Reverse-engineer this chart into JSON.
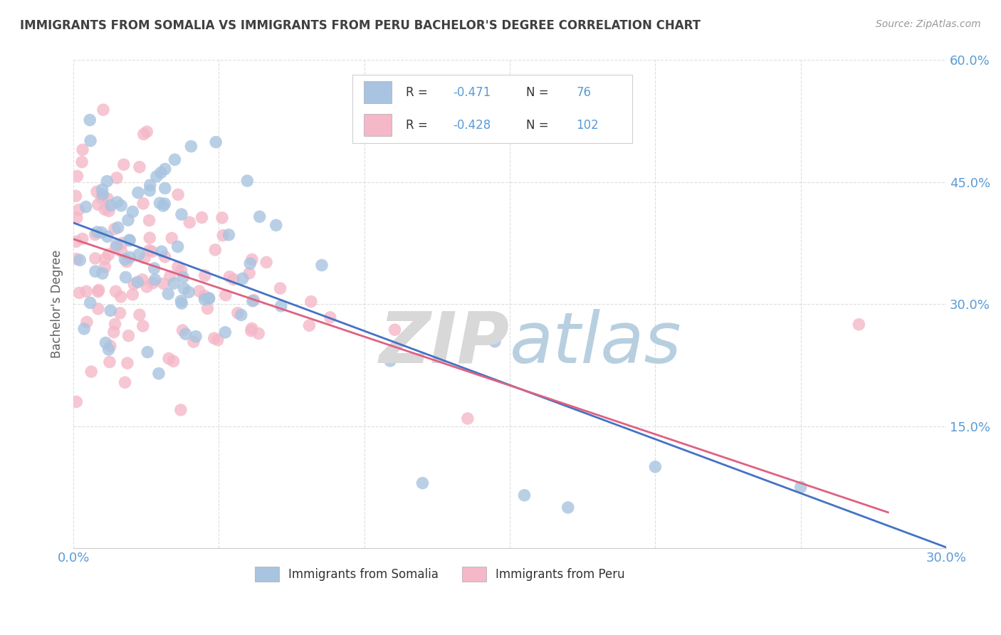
{
  "title": "IMMIGRANTS FROM SOMALIA VS IMMIGRANTS FROM PERU BACHELOR'S DEGREE CORRELATION CHART",
  "source_text": "Source: ZipAtlas.com",
  "ylabel": "Bachelor's Degree",
  "xmin": 0.0,
  "xmax": 0.3,
  "ymin": 0.0,
  "ymax": 0.6,
  "somalia_color": "#a8c4e0",
  "peru_color": "#f4b8c8",
  "somalia_line_color": "#4472c4",
  "peru_line_color": "#e06080",
  "watermark_zip": "ZIP",
  "watermark_atlas": "atlas",
  "background_color": "#ffffff",
  "grid_color": "#c8c8c8",
  "r_somalia": -0.471,
  "n_somalia": 76,
  "r_peru": -0.428,
  "n_peru": 102,
  "title_color": "#404040",
  "axis_color": "#5b9bd5",
  "label_color": "#606060"
}
